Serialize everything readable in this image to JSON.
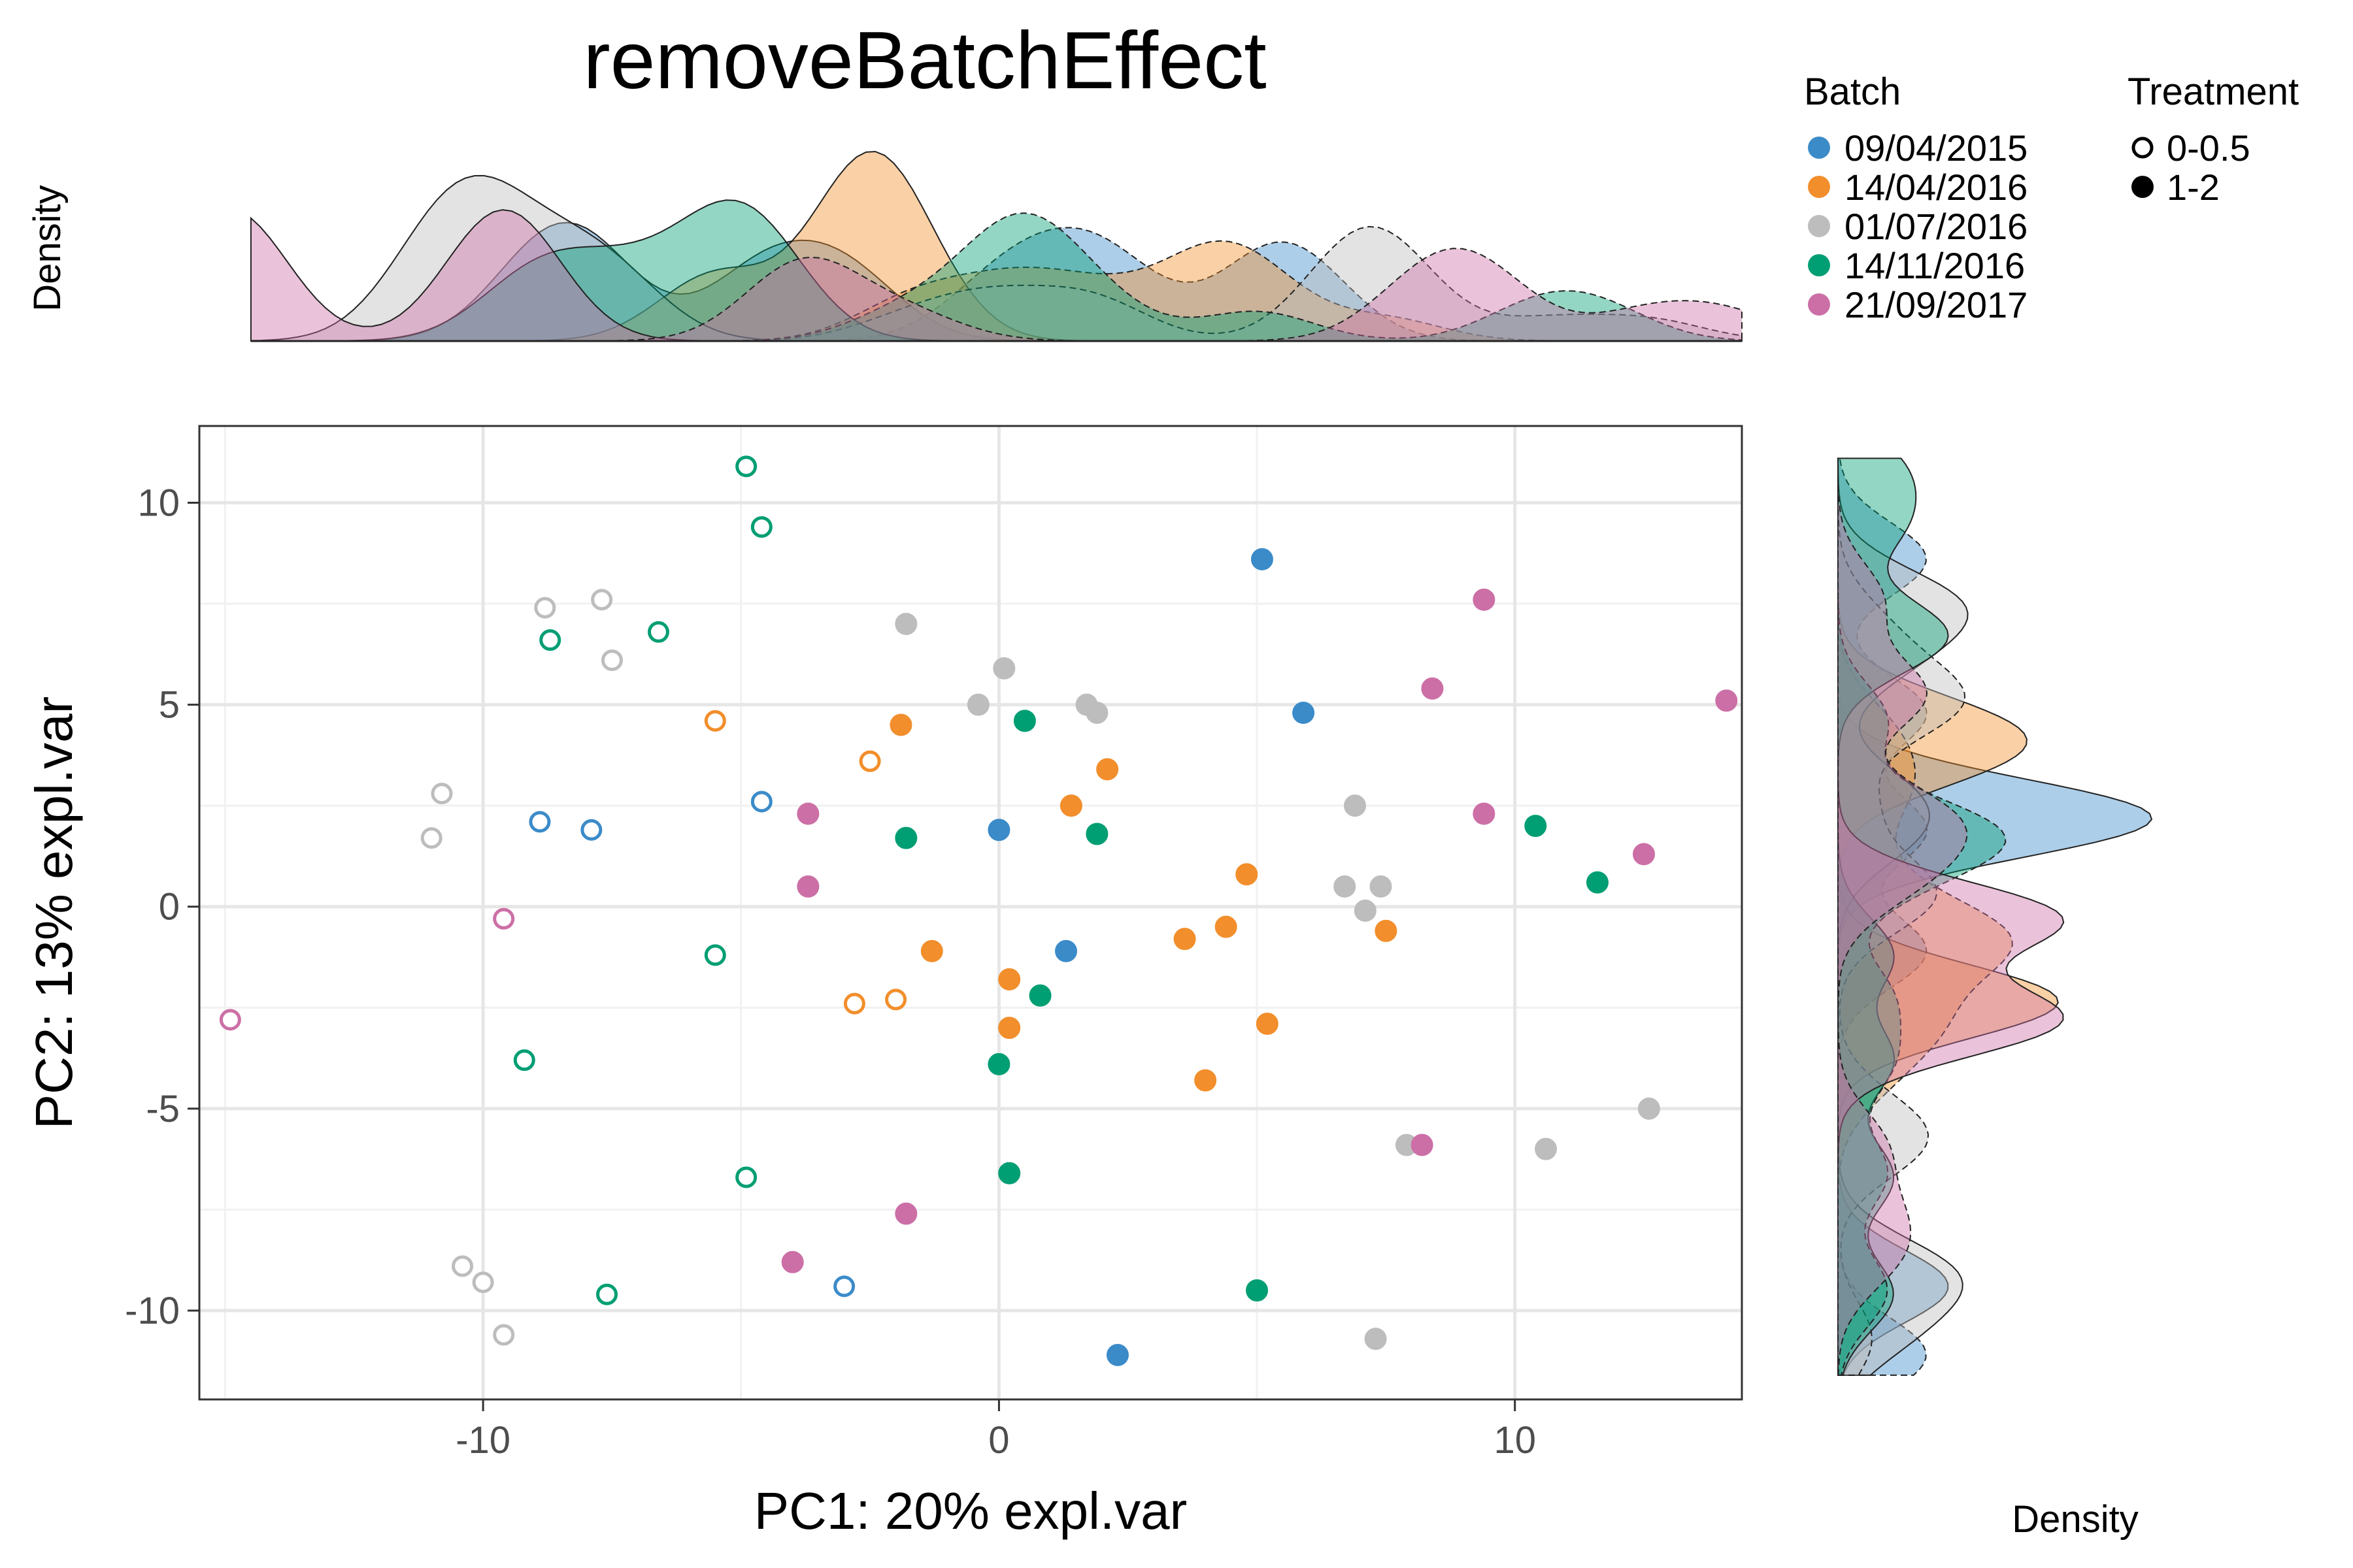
{
  "chart_data": {
    "type": "scatter",
    "title": "removeBatchEffect",
    "xlabel": "PC1: 20% expl.var",
    "ylabel": "PC2: 13% expl.var",
    "xlim": [
      -15.5,
      14.4
    ],
    "ylim": [
      -12.2,
      11.9
    ],
    "x_ticks": [
      -10,
      0,
      10
    ],
    "y_ticks": [
      10,
      5,
      0,
      -5,
      -10
    ],
    "grid": true,
    "legend_position": "top-right",
    "top_panel_ylabel": "Density",
    "right_panel_xlabel": "Density",
    "batch_legend": {
      "title": "Batch",
      "entries": [
        {
          "label": "09/04/2015",
          "color": "#3B8BC9"
        },
        {
          "label": "14/04/2016",
          "color": "#F28E2B"
        },
        {
          "label": "01/07/2016",
          "color": "#BDBDBD"
        },
        {
          "label": "14/11/2016",
          "color": "#009E73"
        },
        {
          "label": "21/09/2017",
          "color": "#CC6FA6"
        }
      ]
    },
    "treatment_legend": {
      "title": "Treatment",
      "entries": [
        {
          "label": "0-0.5",
          "filled": false
        },
        {
          "label": "1-2",
          "filled": true
        }
      ]
    },
    "series": [
      {
        "batch": "09/04/2015",
        "treatment": "0-0.5",
        "points": [
          [
            -4.6,
            2.6
          ],
          [
            -8.9,
            2.1
          ],
          [
            -7.9,
            1.9
          ],
          [
            -3.0,
            -9.4
          ]
        ]
      },
      {
        "batch": "09/04/2015",
        "treatment": "1-2",
        "points": [
          [
            5.1,
            8.6
          ],
          [
            5.9,
            4.8
          ],
          [
            0.0,
            1.9
          ],
          [
            1.3,
            -1.1
          ],
          [
            2.3,
            -11.1
          ]
        ]
      },
      {
        "batch": "14/04/2016",
        "treatment": "0-0.5",
        "points": [
          [
            -5.5,
            4.6
          ],
          [
            -2.5,
            3.6
          ],
          [
            -2.8,
            -2.4
          ],
          [
            -2.0,
            -2.3
          ]
        ]
      },
      {
        "batch": "14/04/2016",
        "treatment": "1-2",
        "points": [
          [
            -1.9,
            4.5
          ],
          [
            2.1,
            3.4
          ],
          [
            1.4,
            2.5
          ],
          [
            4.8,
            0.8
          ],
          [
            4.4,
            -0.5
          ],
          [
            3.6,
            -0.8
          ],
          [
            7.5,
            -0.6
          ],
          [
            -1.3,
            -1.1
          ],
          [
            0.2,
            -1.8
          ],
          [
            0.2,
            -3.0
          ],
          [
            5.2,
            -2.9
          ],
          [
            4.0,
            -4.3
          ]
        ]
      },
      {
        "batch": "01/07/2016",
        "treatment": "0-0.5",
        "points": [
          [
            -8.8,
            7.4
          ],
          [
            -7.7,
            7.6
          ],
          [
            -7.5,
            6.1
          ],
          [
            -10.8,
            2.8
          ],
          [
            -11.0,
            1.7
          ],
          [
            -10.4,
            -8.9
          ],
          [
            -10.0,
            -9.3
          ],
          [
            -9.6,
            -10.6
          ]
        ]
      },
      {
        "batch": "01/07/2016",
        "treatment": "1-2",
        "points": [
          [
            -1.8,
            7.0
          ],
          [
            0.1,
            5.9
          ],
          [
            -0.4,
            5.0
          ],
          [
            1.7,
            5.0
          ],
          [
            1.9,
            4.8
          ],
          [
            6.9,
            2.5
          ],
          [
            6.7,
            0.5
          ],
          [
            7.4,
            0.5
          ],
          [
            7.1,
            -0.1
          ],
          [
            7.9,
            -5.9
          ],
          [
            10.6,
            -6.0
          ],
          [
            12.6,
            -5.0
          ],
          [
            7.3,
            -10.7
          ]
        ]
      },
      {
        "batch": "14/11/2016",
        "treatment": "0-0.5",
        "points": [
          [
            -4.9,
            10.9
          ],
          [
            -4.6,
            9.4
          ],
          [
            -8.7,
            6.6
          ],
          [
            -6.6,
            6.8
          ],
          [
            -5.5,
            -1.2
          ],
          [
            -9.2,
            -3.8
          ],
          [
            -4.9,
            -6.7
          ],
          [
            -7.6,
            -9.6
          ]
        ]
      },
      {
        "batch": "14/11/2016",
        "treatment": "1-2",
        "points": [
          [
            0.5,
            4.6
          ],
          [
            -1.8,
            1.7
          ],
          [
            1.9,
            1.8
          ],
          [
            10.4,
            2.0
          ],
          [
            11.6,
            0.6
          ],
          [
            0.8,
            -2.2
          ],
          [
            0.0,
            -3.9
          ],
          [
            0.2,
            -6.6
          ],
          [
            5.0,
            -9.5
          ]
        ]
      },
      {
        "batch": "21/09/2017",
        "treatment": "0-0.5",
        "points": [
          [
            -9.6,
            -0.3
          ],
          [
            -14.9,
            -2.8
          ]
        ]
      },
      {
        "batch": "21/09/2017",
        "treatment": "1-2",
        "points": [
          [
            9.4,
            7.6
          ],
          [
            8.4,
            5.4
          ],
          [
            14.1,
            5.1
          ],
          [
            -3.7,
            2.3
          ],
          [
            9.4,
            2.3
          ],
          [
            12.5,
            1.3
          ],
          [
            -3.7,
            0.5
          ],
          [
            8.2,
            -5.9
          ],
          [
            -1.8,
            -7.6
          ],
          [
            -4.0,
            -8.8
          ]
        ]
      }
    ]
  }
}
